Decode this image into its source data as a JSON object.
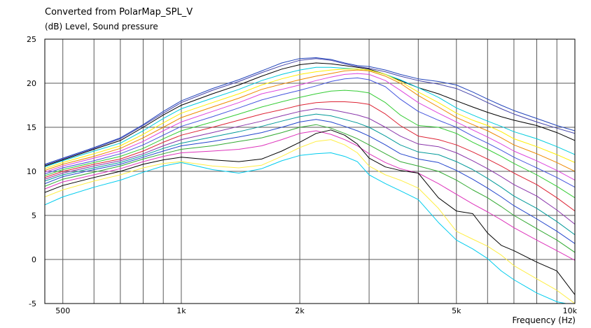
{
  "chart_data": {
    "type": "line",
    "title": "Converted from PolarMap_SPL_V",
    "ylabel": "(dB)  Level, Sound pressure",
    "xlabel": "Frequency  (Hz)",
    "x_scale": "log",
    "xlim": [
      450,
      10000
    ],
    "ylim": [
      -5,
      25
    ],
    "grid": true,
    "legend": "none",
    "x_ticks": [
      {
        "value": 500,
        "label": "500"
      },
      {
        "value": 1000,
        "label": "1k"
      },
      {
        "value": 2000,
        "label": "2k"
      },
      {
        "value": 5000,
        "label": "5k"
      },
      {
        "value": 10000,
        "label": "10k"
      }
    ],
    "y_ticks": [
      {
        "value": 25,
        "label": "25"
      },
      {
        "value": 20,
        "label": "20"
      },
      {
        "value": 15,
        "label": "15"
      },
      {
        "value": 10,
        "label": "10"
      },
      {
        "value": 5,
        "label": "5"
      },
      {
        "value": 0,
        "label": "0"
      },
      {
        "value": -5,
        "label": "-5"
      }
    ],
    "x": [
      450,
      500,
      600,
      700,
      800,
      900,
      1000,
      1200,
      1400,
      1600,
      1800,
      2000,
      2200,
      2400,
      2600,
      2800,
      3000,
      3300,
      3600,
      4000,
      4500,
      5000,
      5500,
      6000,
      6500,
      7000,
      8000,
      9000,
      10000
    ],
    "series": [
      {
        "color": "#2244bb",
        "values": [
          10.8,
          11.5,
          12.7,
          13.8,
          15.3,
          16.8,
          18.0,
          19.4,
          20.4,
          21.4,
          22.3,
          22.8,
          22.9,
          22.7,
          22.3,
          22.0,
          21.9,
          21.5,
          21.0,
          20.5,
          20.2,
          19.8,
          19.0,
          18.2,
          17.5,
          16.9,
          16.0,
          15.2,
          14.6
        ]
      },
      {
        "color": "#4444aa",
        "values": [
          10.7,
          11.4,
          12.6,
          13.7,
          15.2,
          16.6,
          17.8,
          19.2,
          20.2,
          21.2,
          22.0,
          22.6,
          22.8,
          22.6,
          22.2,
          21.9,
          21.7,
          21.3,
          20.8,
          20.3,
          19.9,
          19.4,
          18.6,
          17.8,
          17.1,
          16.5,
          15.6,
          14.9,
          14.3
        ]
      },
      {
        "color": "#000000",
        "values": [
          10.6,
          11.3,
          12.5,
          13.5,
          15.0,
          16.4,
          17.5,
          18.8,
          19.8,
          20.8,
          21.6,
          22.1,
          22.3,
          22.2,
          22.0,
          21.8,
          21.6,
          21.0,
          20.3,
          19.5,
          18.8,
          18.0,
          17.3,
          16.7,
          16.2,
          15.8,
          15.2,
          14.4,
          13.5
        ]
      },
      {
        "color": "#00ccdd",
        "values": [
          10.5,
          11.2,
          12.3,
          13.2,
          14.6,
          16.0,
          17.1,
          18.3,
          19.3,
          20.3,
          21.0,
          21.5,
          21.8,
          21.8,
          21.7,
          21.6,
          21.5,
          21.0,
          20.4,
          19.5,
          18.4,
          17.2,
          16.4,
          15.7,
          15.1,
          14.5,
          13.7,
          12.8,
          11.9
        ]
      },
      {
        "color": "#ffee00",
        "values": [
          10.3,
          11.0,
          12.0,
          12.9,
          14.2,
          15.5,
          16.6,
          17.8,
          18.8,
          19.8,
          20.5,
          21.0,
          21.3,
          21.5,
          21.6,
          21.6,
          21.5,
          21.0,
          20.2,
          19.0,
          17.8,
          16.6,
          15.8,
          15.2,
          14.5,
          13.7,
          12.8,
          11.9,
          11.0
        ]
      },
      {
        "color": "#ee8800",
        "values": [
          10.1,
          10.8,
          11.7,
          12.6,
          13.8,
          15.0,
          16.1,
          17.3,
          18.3,
          19.3,
          19.9,
          20.4,
          20.8,
          21.1,
          21.4,
          21.5,
          21.4,
          20.8,
          20.0,
          18.6,
          17.3,
          16.1,
          15.3,
          14.6,
          13.8,
          13.0,
          12.0,
          11.0,
          10.0
        ]
      },
      {
        "color": "#dd44dd",
        "values": [
          9.9,
          10.6,
          11.5,
          12.3,
          13.4,
          14.6,
          15.6,
          16.8,
          17.8,
          18.8,
          19.3,
          19.8,
          20.3,
          20.7,
          21.0,
          21.1,
          21.0,
          20.3,
          19.2,
          17.8,
          16.6,
          15.6,
          14.7,
          13.9,
          13.1,
          12.3,
          11.2,
          10.1,
          9.0
        ]
      },
      {
        "color": "#4455dd",
        "values": [
          9.7,
          10.4,
          11.2,
          12.0,
          13.0,
          14.1,
          15.1,
          16.2,
          17.2,
          18.1,
          18.7,
          19.2,
          19.7,
          20.2,
          20.5,
          20.6,
          20.4,
          19.6,
          18.2,
          16.8,
          15.8,
          15.0,
          14.0,
          13.2,
          12.4,
          11.6,
          10.4,
          9.3,
          8.2
        ]
      },
      {
        "color": "#33cc33",
        "values": [
          9.5,
          10.2,
          11.0,
          11.7,
          12.6,
          13.7,
          14.6,
          15.6,
          16.5,
          17.3,
          17.9,
          18.4,
          18.8,
          19.1,
          19.2,
          19.1,
          18.9,
          17.8,
          16.4,
          15.2,
          15.0,
          14.3,
          13.3,
          12.5,
          11.7,
          10.9,
          9.6,
          8.3,
          7.0
        ]
      },
      {
        "color": "#dd2233",
        "values": [
          9.3,
          10.0,
          10.8,
          11.4,
          12.3,
          13.3,
          14.1,
          15.0,
          15.8,
          16.5,
          17.0,
          17.5,
          17.8,
          17.9,
          17.9,
          17.8,
          17.6,
          16.5,
          15.2,
          14.0,
          13.6,
          13.0,
          12.2,
          11.4,
          10.6,
          9.8,
          8.5,
          7.0,
          5.5
        ]
      },
      {
        "color": "#8833aa",
        "values": [
          9.1,
          9.8,
          10.6,
          11.2,
          12.0,
          12.9,
          13.6,
          14.4,
          15.1,
          15.7,
          16.3,
          16.8,
          17.1,
          17.0,
          16.7,
          16.4,
          16.0,
          15.0,
          14.0,
          13.1,
          12.8,
          12.1,
          11.2,
          10.3,
          9.4,
          8.5,
          7.2,
          5.6,
          4.0
        ]
      },
      {
        "color": "#009999",
        "values": [
          8.9,
          9.6,
          10.4,
          11.0,
          11.8,
          12.6,
          13.2,
          13.9,
          14.5,
          15.1,
          15.7,
          16.2,
          16.5,
          16.3,
          15.9,
          15.5,
          15.0,
          14.0,
          13.0,
          12.2,
          11.9,
          11.1,
          10.2,
          9.2,
          8.2,
          7.2,
          5.8,
          4.3,
          2.8
        ]
      },
      {
        "color": "#2244cc",
        "values": [
          8.6,
          9.4,
          10.2,
          10.8,
          11.6,
          12.3,
          12.9,
          13.4,
          13.9,
          14.4,
          15.0,
          15.6,
          15.9,
          15.6,
          15.1,
          14.6,
          14.0,
          13.0,
          12.0,
          11.4,
          11.0,
          10.1,
          9.1,
          8.1,
          7.1,
          6.1,
          4.6,
          3.2,
          1.8
        ]
      },
      {
        "color": "#33aa33",
        "values": [
          8.3,
          9.1,
          9.9,
          10.6,
          11.4,
          12.0,
          12.5,
          12.9,
          13.4,
          13.8,
          14.4,
          15.0,
          15.3,
          14.9,
          14.3,
          13.7,
          13.0,
          12.0,
          11.1,
          10.6,
          10.0,
          9.0,
          7.9,
          7.0,
          6.0,
          5.0,
          3.5,
          2.2,
          0.8
        ]
      },
      {
        "color": "#dd33bb",
        "values": [
          8.0,
          8.8,
          9.6,
          10.3,
          11.1,
          11.7,
          12.1,
          12.3,
          12.5,
          12.9,
          13.6,
          14.3,
          14.6,
          14.2,
          13.6,
          12.9,
          12.0,
          11.0,
          10.3,
          9.8,
          8.6,
          7.4,
          6.3,
          5.4,
          4.5,
          3.6,
          2.2,
          1.0,
          -0.1
        ]
      },
      {
        "color": "#000000",
        "values": [
          7.6,
          8.4,
          9.3,
          10.0,
          10.8,
          11.3,
          11.6,
          11.3,
          11.1,
          11.4,
          12.3,
          13.3,
          14.3,
          14.7,
          14.1,
          13.1,
          11.5,
          10.5,
          10.1,
          9.8,
          7.0,
          5.5,
          5.2,
          3.0,
          1.6,
          1.0,
          -0.3,
          -1.3,
          -4.0
        ]
      },
      {
        "color": "#ffee44",
        "values": [
          7.1,
          7.9,
          8.9,
          9.6,
          10.4,
          10.9,
          11.1,
          10.6,
          10.4,
          10.7,
          11.7,
          12.7,
          13.4,
          13.6,
          13.0,
          12.1,
          10.6,
          9.6,
          9.0,
          8.1,
          5.8,
          3.2,
          2.3,
          1.5,
          0.5,
          -0.7,
          -2.2,
          -3.5,
          -5.0
        ]
      },
      {
        "color": "#00ccee",
        "values": [
          6.2,
          7.1,
          8.2,
          9.0,
          9.9,
          10.6,
          11.0,
          10.2,
          9.8,
          10.3,
          11.2,
          11.8,
          12.0,
          12.1,
          11.7,
          11.1,
          9.6,
          8.6,
          7.8,
          6.8,
          4.2,
          2.2,
          1.2,
          0.1,
          -1.3,
          -2.3,
          -3.8,
          -4.8,
          -5.2
        ]
      }
    ]
  }
}
